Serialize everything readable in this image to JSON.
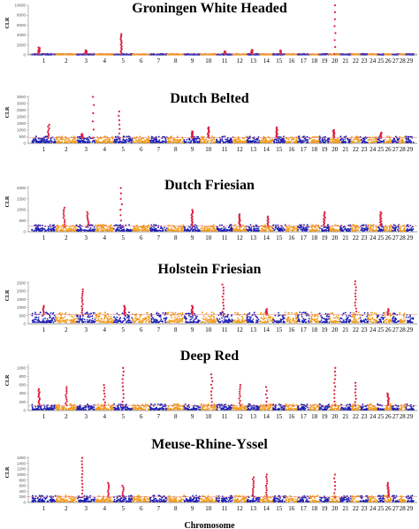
{
  "chart_data": {
    "type": "scatter",
    "x_axis_label": "Chromosome",
    "chromosomes": [
      "1",
      "2",
      "3",
      "4",
      "5",
      "6",
      "7",
      "8",
      "9",
      "10",
      "11",
      "12",
      "13",
      "14",
      "15",
      "16",
      "17",
      "18",
      "19",
      "20",
      "21",
      "22",
      "23",
      "24",
      "25",
      "26",
      "27",
      "28",
      "29"
    ],
    "colors": {
      "odd": "#1f1fb4",
      "even": "#f29b1a",
      "outlier": "#dc1e3c",
      "threshold": "#e07a7a"
    },
    "panels": [
      {
        "title": "Groningen White Headed",
        "ylabel": "CLR",
        "yticks": [
          "0",
          "2000",
          "4000",
          "6000",
          "8000",
          "10000"
        ],
        "ymax": 10000,
        "threshold": 180,
        "peaks": [
          {
            "chr": 1,
            "pos": 0.3,
            "max": 1500
          },
          {
            "chr": 3,
            "pos": 0.5,
            "max": 900
          },
          {
            "chr": 5,
            "pos": 0.4,
            "max": 4200
          },
          {
            "chr": 11,
            "pos": 0.5,
            "max": 700
          },
          {
            "chr": 13,
            "pos": 0.4,
            "max": 1000
          },
          {
            "chr": 15,
            "pos": 0.6,
            "max": 900
          },
          {
            "chr": 20,
            "pos": 0.5,
            "max": 10000
          }
        ]
      },
      {
        "title": "Dutch Belted",
        "ylabel": "CLR",
        "yticks": [
          "0",
          "500",
          "1000",
          "1500",
          "2000",
          "2500",
          "3000",
          "3500"
        ],
        "ymax": 3600,
        "threshold": 420,
        "peaks": [
          {
            "chr": 1,
            "pos": 0.7,
            "max": 1400
          },
          {
            "chr": 3,
            "pos": 0.3,
            "max": 700
          },
          {
            "chr": 3,
            "pos": 0.9,
            "max": 3500
          },
          {
            "chr": 5,
            "pos": 0.3,
            "max": 2400
          },
          {
            "chr": 9,
            "pos": 0.5,
            "max": 900
          },
          {
            "chr": 10,
            "pos": 0.5,
            "max": 1200
          },
          {
            "chr": 15,
            "pos": 0.3,
            "max": 1200
          },
          {
            "chr": 20,
            "pos": 0.4,
            "max": 1000
          },
          {
            "chr": 25,
            "pos": 0.5,
            "max": 800
          }
        ]
      },
      {
        "title": "Dutch Friesian",
        "ylabel": "CLR",
        "yticks": [
          "0",
          "500",
          "1000",
          "1500",
          "2000"
        ],
        "ymax": 2100,
        "threshold": 260,
        "peaks": [
          {
            "chr": 2,
            "pos": 0.4,
            "max": 1100
          },
          {
            "chr": 3,
            "pos": 0.6,
            "max": 900
          },
          {
            "chr": 5,
            "pos": 0.4,
            "max": 2000
          },
          {
            "chr": 9,
            "pos": 0.5,
            "max": 1000
          },
          {
            "chr": 12,
            "pos": 0.5,
            "max": 800
          },
          {
            "chr": 14,
            "pos": 0.6,
            "max": 700
          },
          {
            "chr": 19,
            "pos": 0.5,
            "max": 900
          },
          {
            "chr": 25,
            "pos": 0.5,
            "max": 900
          }
        ]
      },
      {
        "title": "Holstein Friesian",
        "ylabel": "CLR",
        "yticks": [
          "0",
          "500",
          "1000",
          "1500",
          "2000",
          "2500"
        ],
        "ymax": 2600,
        "threshold": 560,
        "peaks": [
          {
            "chr": 1,
            "pos": 0.5,
            "max": 1100
          },
          {
            "chr": 3,
            "pos": 0.3,
            "max": 2100
          },
          {
            "chr": 5,
            "pos": 0.6,
            "max": 1100
          },
          {
            "chr": 9,
            "pos": 0.5,
            "max": 1100
          },
          {
            "chr": 11,
            "pos": 0.4,
            "max": 2400
          },
          {
            "chr": 14,
            "pos": 0.5,
            "max": 900
          },
          {
            "chr": 22,
            "pos": 0.5,
            "max": 2600
          },
          {
            "chr": 26,
            "pos": 0.5,
            "max": 900
          }
        ]
      },
      {
        "title": "Deep Red",
        "ylabel": "CLR",
        "yticks": [
          "0",
          "200",
          "400",
          "600",
          "800",
          "1000"
        ],
        "ymax": 1080,
        "threshold": 120,
        "peaks": [
          {
            "chr": 1,
            "pos": 0.3,
            "max": 500
          },
          {
            "chr": 2,
            "pos": 0.5,
            "max": 550
          },
          {
            "chr": 4,
            "pos": 0.5,
            "max": 600
          },
          {
            "chr": 5,
            "pos": 0.5,
            "max": 1000
          },
          {
            "chr": 10,
            "pos": 0.7,
            "max": 850
          },
          {
            "chr": 12,
            "pos": 0.5,
            "max": 600
          },
          {
            "chr": 14,
            "pos": 0.5,
            "max": 550
          },
          {
            "chr": 20,
            "pos": 0.5,
            "max": 1000
          },
          {
            "chr": 22,
            "pos": 0.5,
            "max": 650
          },
          {
            "chr": 26,
            "pos": 0.5,
            "max": 400
          }
        ]
      },
      {
        "title": "Meuse-Rhine-Yssel",
        "ylabel": "CLR",
        "yticks": [
          "0",
          "200",
          "400",
          "600",
          "800",
          "1000",
          "1200",
          "1400",
          "1600"
        ],
        "ymax": 1650,
        "threshold": 200,
        "peaks": [
          {
            "chr": 3,
            "pos": 0.3,
            "max": 1600
          },
          {
            "chr": 4,
            "pos": 0.7,
            "max": 700
          },
          {
            "chr": 5,
            "pos": 0.5,
            "max": 600
          },
          {
            "chr": 13,
            "pos": 0.5,
            "max": 900
          },
          {
            "chr": 14,
            "pos": 0.5,
            "max": 1000
          },
          {
            "chr": 20,
            "pos": 0.5,
            "max": 1000
          },
          {
            "chr": 26,
            "pos": 0.5,
            "max": 700
          }
        ]
      }
    ]
  }
}
